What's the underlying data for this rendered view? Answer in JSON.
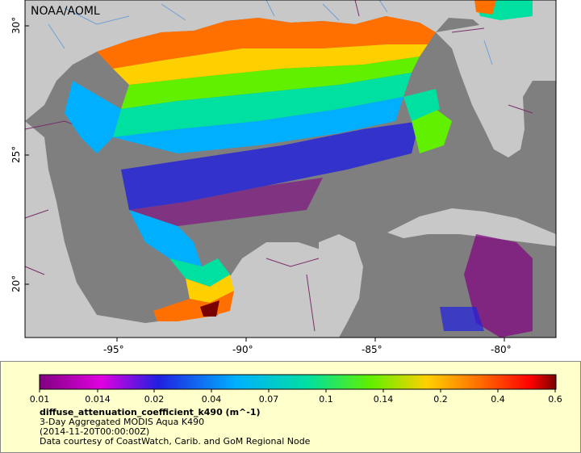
{
  "map": {
    "attribution": "NOAA/AOML",
    "lon_ticks": [
      "-95°",
      "-90°",
      "-85°",
      "-80°"
    ],
    "lat_ticks": [
      "30°",
      "25°",
      "20°"
    ],
    "colors": {
      "land": "#c8c8c8",
      "no_data": "#7f7f7f",
      "border": "#7a2f6b",
      "river": "#6f9fd8"
    }
  },
  "legend": {
    "scale_labels": [
      "0.01",
      "0.014",
      "0.02",
      "0.04",
      "0.07",
      "0.1",
      "0.14",
      "0.2",
      "0.4",
      "0.6"
    ],
    "scale_type": "log",
    "variable": "diffuse_attenuation_coefficient_k490 (m^-1)",
    "line1": "3-Day Aggregated MODIS Aqua K490",
    "line2": "(2014-11-20T00:00:00Z)",
    "line3": "Data courtesy of CoastWatch, Carib. and GoM Regional Node",
    "colors": [
      "#800080",
      "#e000e0",
      "#2020e0",
      "#00b0ff",
      "#00e0a0",
      "#60f000",
      "#ffd000",
      "#ff7000",
      "#ff0000",
      "#7a0000"
    ]
  }
}
